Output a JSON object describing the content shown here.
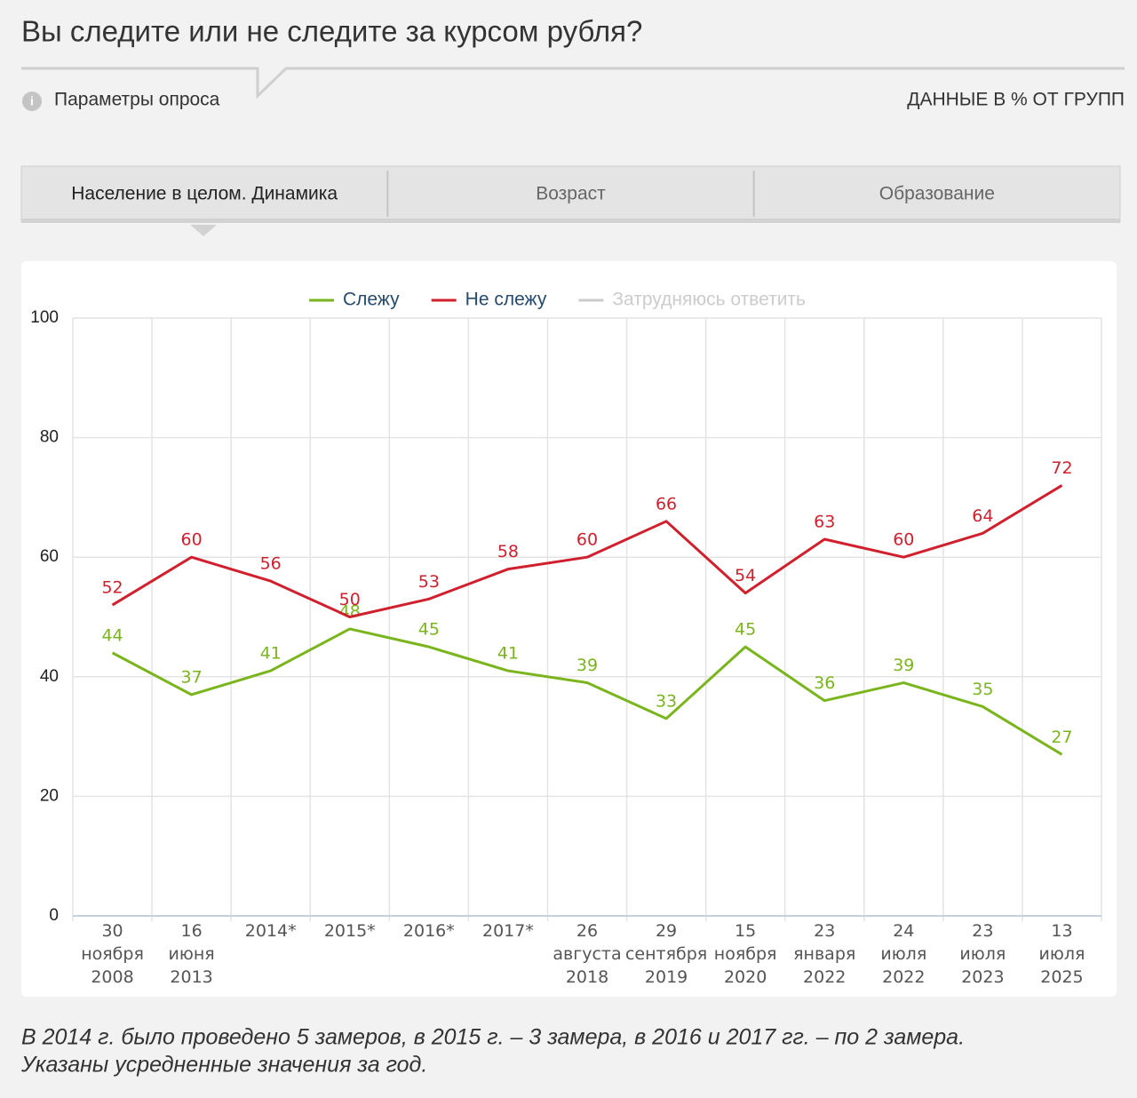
{
  "header": {
    "title": "Вы следите или не следите за курсом рубля?",
    "params": "Параметры опроса",
    "units": "ДАННЫЕ В % ОТ ГРУПП"
  },
  "tabs": [
    "Население в целом. Динамика",
    "Возраст",
    "Образование"
  ],
  "chart_data": {
    "type": "line",
    "categories": [
      "30 ноября 2008",
      "16 июня 2013",
      "2014*",
      "2015*",
      "2016*",
      "2017*",
      "26 августа 2018",
      "29 сентября 2019",
      "15 ноября 2020",
      "23 января 2022",
      "24 июля 2022",
      "23 июля 2023",
      "13 июля 2025"
    ],
    "series": [
      {
        "name": "Слежу",
        "color": "#7ab51d",
        "values": [
          44,
          37,
          41,
          48,
          45,
          41,
          39,
          33,
          45,
          36,
          39,
          35,
          27
        ]
      },
      {
        "name": "Не слежу",
        "color": "#d0202e",
        "values": [
          52,
          60,
          56,
          50,
          53,
          58,
          60,
          66,
          54,
          63,
          60,
          64,
          72
        ]
      },
      {
        "name": "Затрудняюсь ответить",
        "color": "#c8c8c8",
        "visible": false,
        "values": [
          null,
          null,
          null,
          null,
          null,
          null,
          null,
          null,
          null,
          null,
          null,
          null,
          null
        ]
      }
    ],
    "ylim": [
      0,
      100
    ],
    "yticks": [
      0,
      20,
      40,
      60,
      80,
      100
    ],
    "grid": true,
    "legend": "top"
  },
  "footnote": [
    "В 2014 г. было проведено 5 замеров, в 2015 г. – 3 замера, в 2016 и 2017 гг. – по 2 замера.",
    "Указаны усредненные значения за год."
  ]
}
